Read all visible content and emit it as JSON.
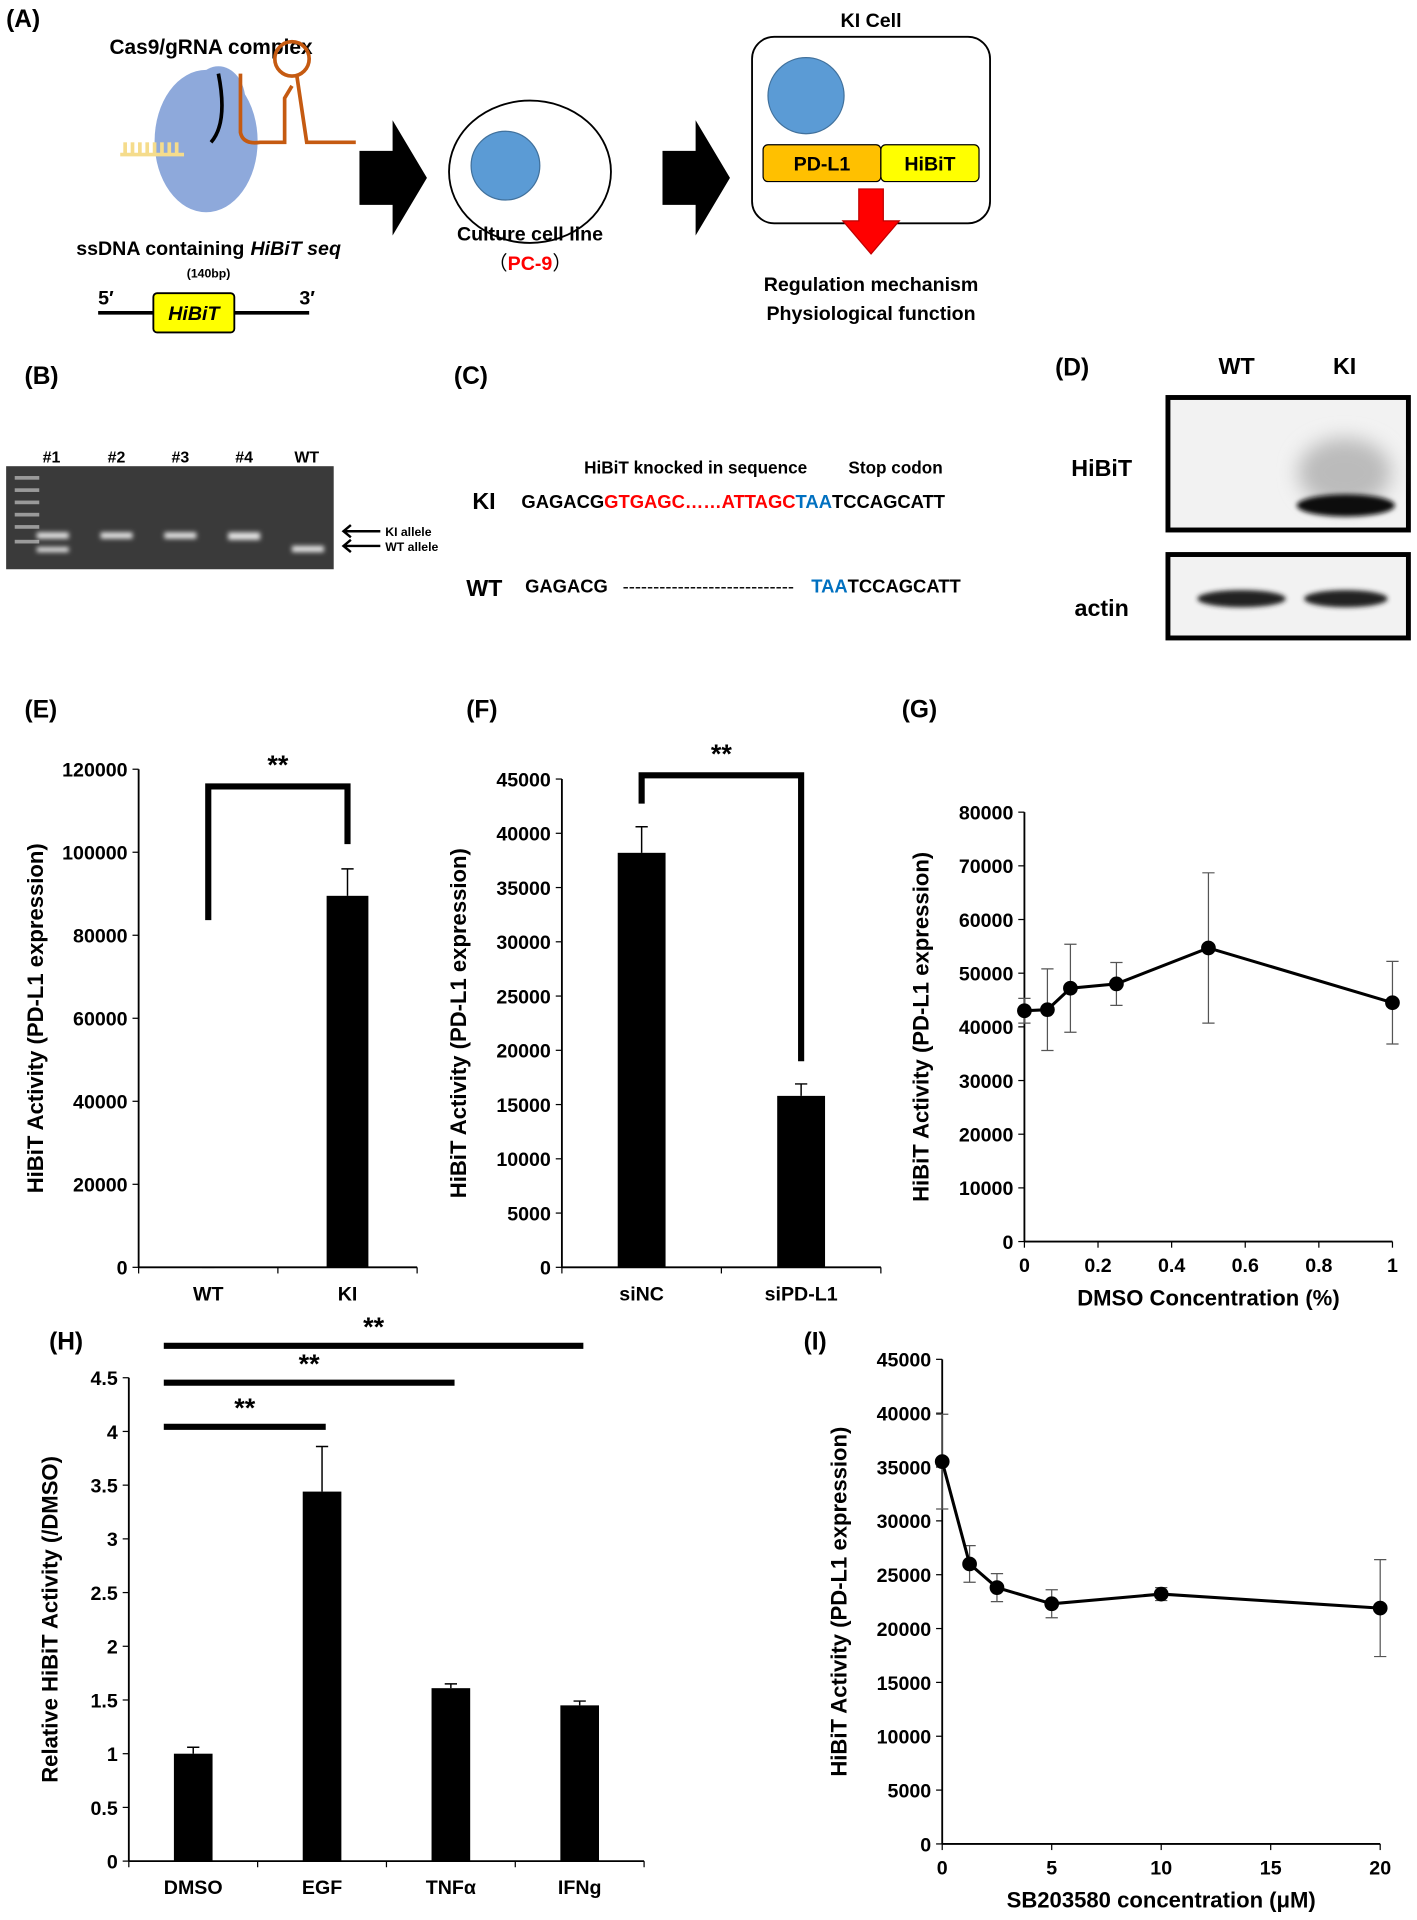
{
  "panel_labels": [
    "(A)",
    "(B)",
    "(C)",
    "(D)",
    "(E)",
    "(F)",
    "(G)",
    "(H)",
    "(I)"
  ],
  "diagram_a": {
    "complex_label": "Cas9/gRNA complex",
    "ssdna_label": "ssDNA containing",
    "ssdna_label_italic": "HiBiT seq",
    "ssdna_size": "(140bp)",
    "five_prime": "5′",
    "three_prime": "3′",
    "insert": "HiBiT",
    "cell_line": "Culture cell line",
    "paren_open": "（",
    "cell_line_name": "PC-9",
    "paren_close": "）",
    "ki_cell": "KI Cell",
    "fusion_left": "PD-L1",
    "fusion_right": "HiBiT",
    "outcome_1": "Regulation mechanism",
    "outcome_2": "Physiological function"
  },
  "gel_b": {
    "lanes": [
      "#1",
      "#2",
      "#3",
      "#4",
      "WT"
    ],
    "ki_allele": "KI allele",
    "wt_allele": "WT allele"
  },
  "sequence_c": {
    "insert_caption": "HiBiT knocked in sequence",
    "stop_caption": "Stop codon",
    "ki_label": "KI",
    "ki_seq": [
      "GAGACG",
      "GTGAGC……ATTAGC",
      "TAA",
      "TCCAGCATT"
    ],
    "wt_label": "WT",
    "wt_seq": [
      "GAGACG",
      "----------------------------",
      "TAA",
      "TCCAGCATT"
    ]
  },
  "blot_d": {
    "columns": [
      "WT",
      "KI"
    ],
    "rows": [
      "HiBiT",
      "actin"
    ]
  },
  "chart_data": [
    {
      "type": "bar",
      "ylabel": "HiBiT Activity (PD-L1 expression)",
      "categories": [
        "WT",
        "KI"
      ],
      "values": [
        0,
        89500
      ],
      "errors": [
        0,
        6500
      ],
      "color": "#000000",
      "ylim": [
        0,
        120000
      ],
      "yticks": [
        0,
        20000,
        40000,
        60000,
        80000,
        100000,
        120000
      ],
      "significance": [
        {
          "from": 0,
          "to": 1,
          "label": "**"
        }
      ]
    },
    {
      "type": "bar",
      "ylabel": "HiBiT Activity (PD-L1 expression)",
      "categories": [
        "siNC",
        "siPD-L1"
      ],
      "values": [
        38200,
        15800
      ],
      "errors": [
        2400,
        1100
      ],
      "color": "#000000",
      "ylim": [
        0,
        45000
      ],
      "yticks": [
        0,
        5000,
        10000,
        15000,
        20000,
        25000,
        30000,
        35000,
        40000,
        45000
      ],
      "significance": [
        {
          "from": 0,
          "to": 1,
          "label": "**"
        }
      ]
    },
    {
      "type": "line",
      "ylabel": "HiBiT Activity (PD-L1 expression)",
      "xlabel": "DMSO Concentration (%)",
      "x": [
        0,
        0.0625,
        0.125,
        0.25,
        0.5,
        1
      ],
      "values": [
        43000,
        43200,
        47200,
        48000,
        54700,
        44500
      ],
      "errors": [
        2300,
        7600,
        8200,
        4000,
        14000,
        7700
      ],
      "color": "#000000",
      "xlim": [
        0,
        1
      ],
      "xticks": [
        0,
        0.2,
        0.4,
        0.6,
        0.8,
        1
      ],
      "ylim": [
        0,
        80000
      ],
      "yticks": [
        0,
        10000,
        20000,
        30000,
        40000,
        50000,
        60000,
        70000,
        80000
      ]
    },
    {
      "type": "bar",
      "ylabel": "Relative HiBiT Activity (/DMSO)",
      "categories": [
        "DMSO",
        "EGF",
        "TNFα",
        "IFNg"
      ],
      "values": [
        1,
        3.44,
        1.61,
        1.45
      ],
      "errors": [
        0.06,
        0.42,
        0.04,
        0.04
      ],
      "color": "#000000",
      "ylim": [
        0,
        4.5
      ],
      "yticks": [
        0,
        0.5,
        1,
        1.5,
        2,
        2.5,
        3,
        3.5,
        4,
        4.5
      ],
      "significance": [
        {
          "from": 0,
          "to": 1,
          "label": "**"
        },
        {
          "from": 0,
          "to": 2,
          "label": "**"
        },
        {
          "from": 0,
          "to": 3,
          "label": "**"
        }
      ]
    },
    {
      "type": "line",
      "ylabel": "HiBiT Activity (PD-L1 expression)",
      "xlabel": "SB203580 concentration (μM)",
      "x": [
        0,
        1.25,
        2.5,
        5,
        10,
        20
      ],
      "values": [
        35500,
        26000,
        23800,
        22300,
        23200,
        21900
      ],
      "errors": [
        4400,
        1700,
        1300,
        1300,
        600,
        4500
      ],
      "color": "#000000",
      "xlim": [
        0,
        20
      ],
      "xticks": [
        0,
        5,
        10,
        15,
        20
      ],
      "ylim": [
        0,
        45000
      ],
      "yticks": [
        0,
        5000,
        10000,
        15000,
        20000,
        25000,
        30000,
        35000,
        40000,
        45000
      ]
    }
  ]
}
